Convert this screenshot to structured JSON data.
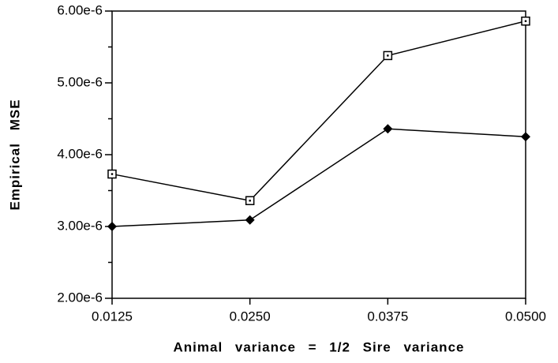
{
  "chart_data": {
    "type": "line",
    "x_label": "Animal variance = 1/2 Sire variance",
    "y_label": "Empirical MSE",
    "x": [
      0.0125,
      0.025,
      0.0375,
      0.05
    ],
    "series": [
      {
        "color": "#000000",
        "marker": "square-open",
        "values": [
          3.73e-06,
          3.36e-06,
          5.38e-06,
          5.86e-06
        ]
      },
      {
        "color": "#000000",
        "marker": "diamond-filled",
        "values": [
          3e-06,
          3.09e-06,
          4.36e-06,
          4.25e-06
        ]
      }
    ],
    "xlim": [
      0.0125,
      0.05
    ],
    "xticks": [
      0.0125,
      {
        "value": 0.025,
        "label": "0.0250"
      },
      {
        "value": 0.0375,
        "label": "0.0375"
      },
      {
        "value": 0.05,
        "label": "0.0500"
      }
    ],
    "ylim": [
      2e-06,
      6e-06
    ],
    "yticks": [
      {
        "value": 2e-06,
        "label": "2.00e-6"
      },
      {
        "value": 3e-06,
        "label": "3.00e-6"
      },
      {
        "value": 4e-06,
        "label": "4.00e-6"
      },
      {
        "value": 5e-06,
        "label": "5.00e-6"
      },
      {
        "value": 6e-06,
        "label": "6.00e-6"
      }
    ],
    "yminorticks": [
      2.5e-06,
      3.5e-06,
      4.5e-06,
      5.5e-06
    ],
    "grid": false
  }
}
